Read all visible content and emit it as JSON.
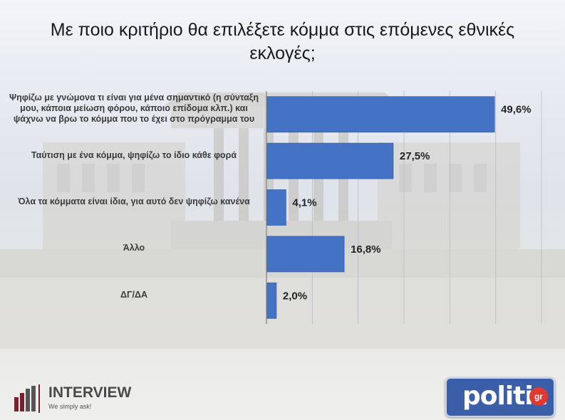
{
  "chart_data": {
    "type": "bar",
    "orientation": "horizontal",
    "title": "Με ποιο κριτήριο θα επιλέξετε κόμμα στις επόμενες εθνικές εκλογές;",
    "categories": [
      "Ψηφίζω με γνώμονα τι είναι για μένα σημαντικό (η σύνταξη μου, κάποια μείωση φόρου, κάποιο επίδομα κλπ.) και ψάχνω να βρω το κόμμα που το έχει στο πρόγραμμα του",
      "Ταύτιση με ένα κόμμα, ψηφίζω το ίδιο κάθε φορά",
      "Όλα τα κόμματα είναι ίδια, για αυτό δεν ψηφίζω κανένα",
      "Άλλο",
      "ΔΓ/ΔΑ"
    ],
    "values": [
      49.6,
      27.5,
      4.1,
      16.8,
      2.0
    ],
    "value_labels": [
      "49,6%",
      "27,5%",
      "4,1%",
      "16,8%",
      "2,0%"
    ],
    "xlim": [
      0,
      60
    ],
    "grid": true,
    "bar_color": "#4472c4"
  },
  "brand_left": {
    "name": "INTERVIEW",
    "tagline": "We simply ask!"
  },
  "brand_right": {
    "name": "politic",
    "suffix": "gr"
  }
}
